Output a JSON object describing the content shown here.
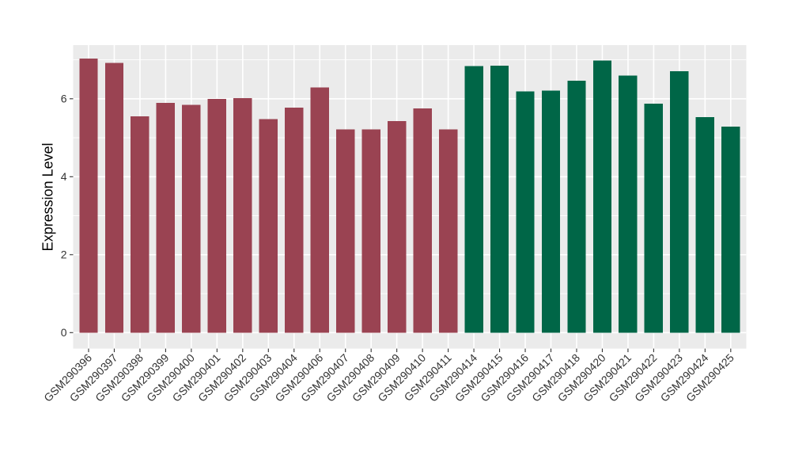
{
  "chart_data": {
    "type": "bar",
    "title": "",
    "xlabel": "",
    "ylabel": "Expression Level",
    "categories": [
      "GSM290396",
      "GSM290397",
      "GSM290398",
      "GSM290399",
      "GSM290400",
      "GSM290401",
      "GSM290402",
      "GSM290403",
      "GSM290404",
      "GSM290406",
      "GSM290407",
      "GSM290408",
      "GSM290409",
      "GSM290410",
      "GSM290411",
      "GSM290414",
      "GSM290415",
      "GSM290416",
      "GSM290417",
      "GSM290418",
      "GSM290420",
      "GSM290421",
      "GSM290422",
      "GSM290423",
      "GSM290424",
      "GSM290425"
    ],
    "values": [
      7.03,
      6.92,
      5.55,
      5.89,
      5.84,
      6.0,
      6.02,
      5.48,
      5.77,
      6.29,
      5.21,
      5.21,
      5.43,
      5.75,
      5.21,
      6.84,
      6.85,
      6.19,
      6.21,
      6.46,
      6.98,
      6.6,
      5.87,
      6.71,
      5.53,
      5.29
    ],
    "groups": [
      {
        "name": "group-1-maroon",
        "color": "#9A4352",
        "categories": [
          "GSM290396",
          "GSM290397",
          "GSM290398",
          "GSM290399",
          "GSM290400",
          "GSM290401",
          "GSM290402",
          "GSM290403",
          "GSM290404",
          "GSM290406",
          "GSM290407",
          "GSM290408",
          "GSM290409",
          "GSM290410",
          "GSM290411"
        ]
      },
      {
        "name": "group-2-green",
        "color": "#006647",
        "categories": [
          "GSM290414",
          "GSM290415",
          "GSM290416",
          "GSM290417",
          "GSM290418",
          "GSM290420",
          "GSM290421",
          "GSM290422",
          "GSM290423",
          "GSM290424",
          "GSM290425"
        ]
      }
    ],
    "y_ticks": [
      0,
      2,
      4,
      6
    ],
    "y_minor_gridlines": [
      1,
      3,
      5,
      7
    ],
    "ylim": [
      0,
      7.4
    ],
    "x_label_angle": 45,
    "bar_width_ratio": 0.72,
    "grid": true,
    "legend": "none",
    "panel_background": "#EBEBEB",
    "gridline_color": "#FFFFFF",
    "axis_text_color": "#333333",
    "axis_title_color": "#000000",
    "tick_color": "#333333"
  }
}
